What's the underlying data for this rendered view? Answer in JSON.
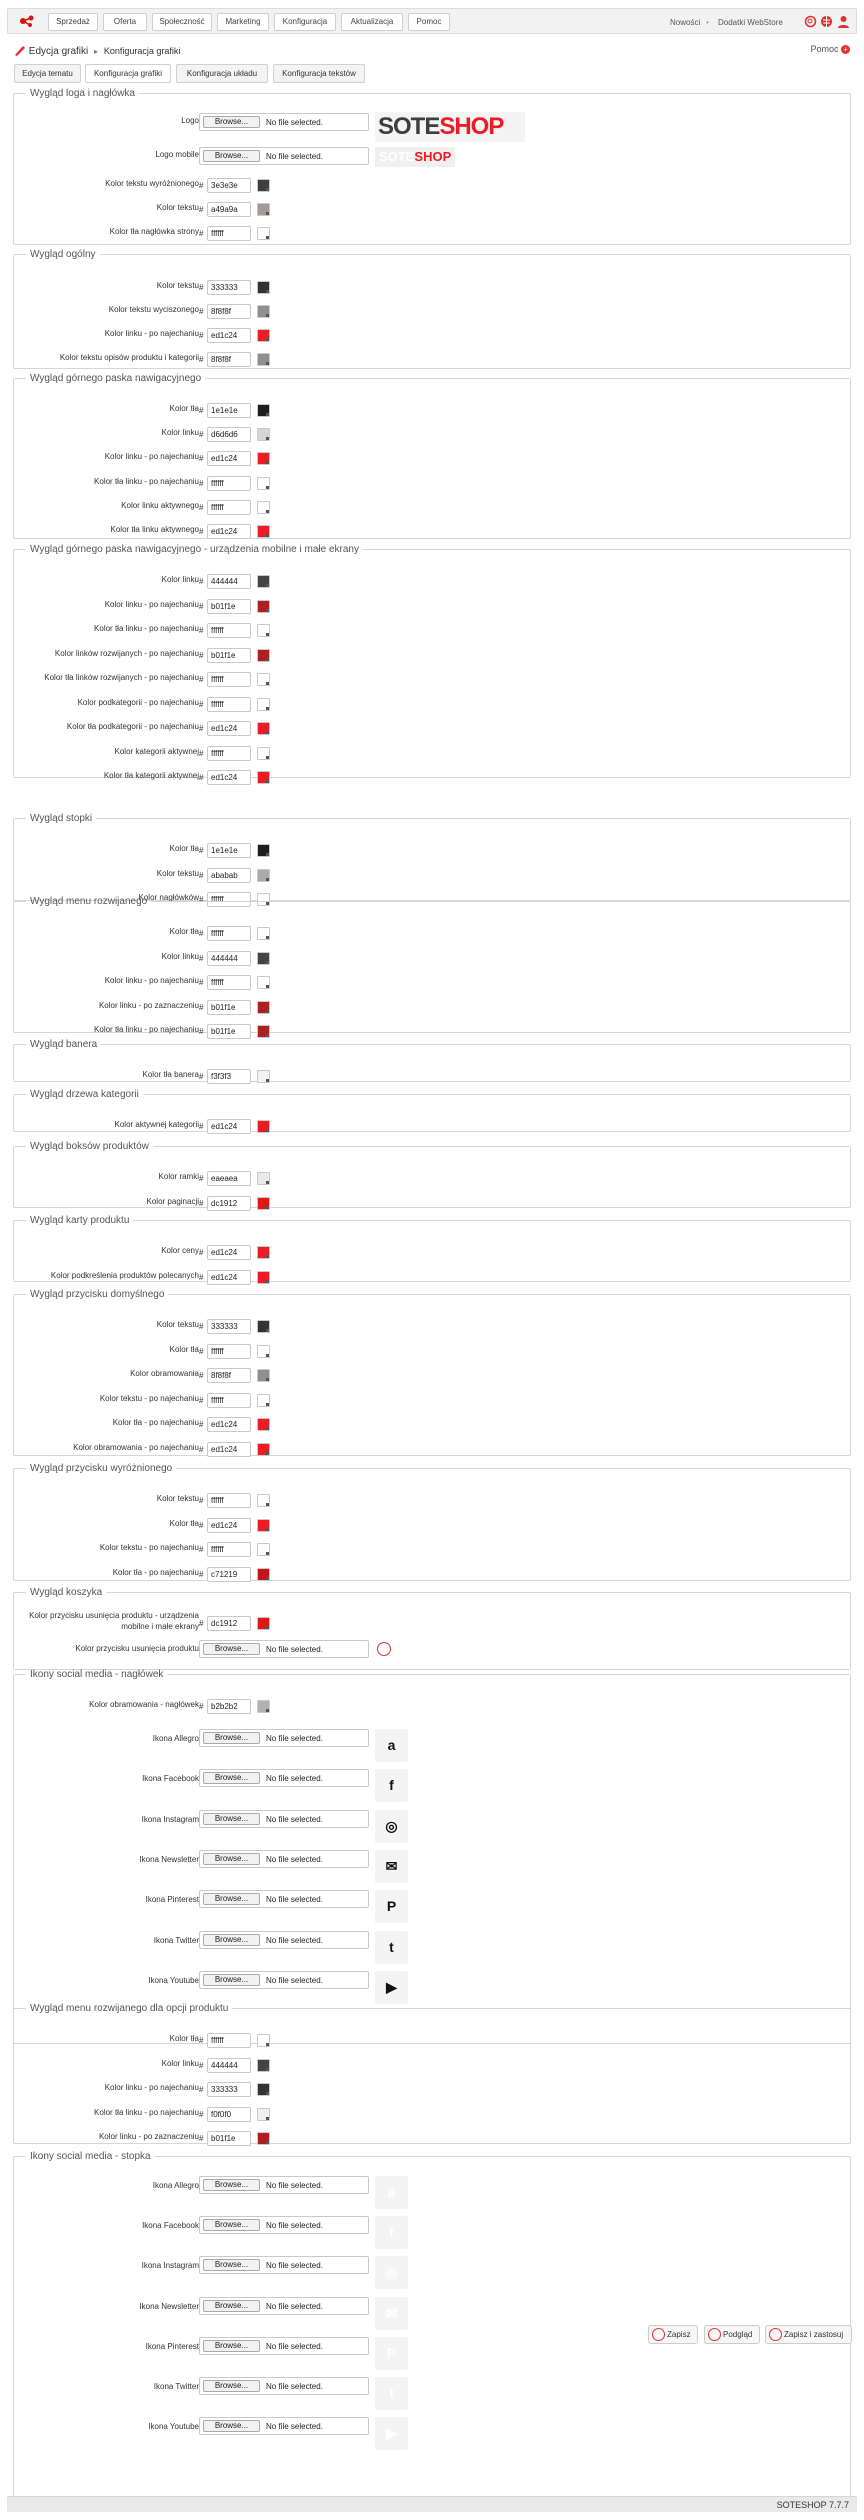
{
  "nav": {
    "items": [
      "Sprzedaż",
      "Oferta",
      "Społeczność",
      "Marketing",
      "Konfiguracja",
      "Aktualizacja",
      "Pomoc"
    ],
    "right_links": [
      "Nowości",
      "Dodatki WebStore"
    ]
  },
  "breadcrumb": {
    "root": "Edycja grafiki",
    "sep": "▸",
    "current": "Konfiguracja grafiki"
  },
  "help_label": "Pomoc",
  "tabs": [
    "Edycja tematu",
    "Konfiguracja grafiki",
    "Konfiguracja układu",
    "Konfiguracja tekstów"
  ],
  "file_placeholder": {
    "browse": "Browse...",
    "status": "No file selected."
  },
  "brand": {
    "part1": "SOTE",
    "part2": "SHOP",
    "accent": "#ed1c24"
  },
  "s1": {
    "legend": "Wygląd loga i nagłówka",
    "logo": "Logo",
    "logo_mobile": "Logo mobile",
    "rows": [
      {
        "label": "Kolor tekstu wyróżnionego",
        "value": "3e3e3e",
        "color": "#3e3e3e"
      },
      {
        "label": "Kolor tekstu",
        "value": "a49a9a",
        "color": "#a49a9a"
      },
      {
        "label": "Kolor tła nagłówka strony",
        "value": "ffffff",
        "color": "#ffffff"
      }
    ]
  },
  "s2": {
    "legend": "Wygląd ogólny",
    "rows": [
      {
        "label": "Kolor tekstu",
        "value": "333333",
        "color": "#333333"
      },
      {
        "label": "Kolor tekstu wyciszonego",
        "value": "8f8f8f",
        "color": "#8f8f8f"
      },
      {
        "label": "Kolor linku - po najechaniu",
        "value": "ed1c24",
        "color": "#ed1c24"
      },
      {
        "label": "Kolor tekstu opisów produktu i kategorii",
        "value": "8f8f8f",
        "color": "#8f8f8f"
      }
    ]
  },
  "s3": {
    "legend": "Wygląd górnego paska nawigacyjnego",
    "rows": [
      {
        "label": "Kolor tła",
        "value": "1e1e1e",
        "color": "#1e1e1e"
      },
      {
        "label": "Kolor linku",
        "value": "d6d6d6",
        "color": "#d6d6d6"
      },
      {
        "label": "Kolor linku - po najechaniu",
        "value": "ed1c24",
        "color": "#ed1c24"
      },
      {
        "label": "Kolor tła linku - po najechaniu",
        "value": "ffffff",
        "color": "#ffffff"
      },
      {
        "label": "Kolor linku aktywnego",
        "value": "ffffff",
        "color": "#ffffff"
      },
      {
        "label": "Kolor tła linku aktywnego",
        "value": "ed1c24",
        "color": "#ed1c24"
      }
    ]
  },
  "s4": {
    "legend": "Wygląd górnego paska nawigacyjnego - urządzenia mobilne i małe ekrany",
    "rows": [
      {
        "label": "Kolor linku",
        "value": "444444",
        "color": "#444444"
      },
      {
        "label": "Kolor linku - po najechaniu",
        "value": "b01f1e",
        "color": "#b01f1e"
      },
      {
        "label": "Kolor tła linku - po najechaniu",
        "value": "ffffff",
        "color": "#ffffff"
      },
      {
        "label": "Kolor linków rozwijanych - po najechaniu",
        "value": "b01f1e",
        "color": "#b01f1e"
      },
      {
        "label": "Kolor tła linków rozwijanych - po najechaniu",
        "value": "ffffff",
        "color": "#ffffff"
      },
      {
        "label": "Kolor podkategorii - po najechaniu",
        "value": "ffffff",
        "color": "#ffffff"
      },
      {
        "label": "Kolor tła podkategorii - po najechaniu",
        "value": "ed1c24",
        "color": "#ed1c24"
      },
      {
        "label": "Kolor kategorii aktywnej",
        "value": "ffffff",
        "color": "#ffffff"
      },
      {
        "label": "Kolor tła kategorii aktywnej",
        "value": "ed1c24",
        "color": "#ed1c24"
      }
    ]
  },
  "s5": {
    "legend": "Wygląd stopki",
    "rows": [
      {
        "label": "Kolor tła",
        "value": "1e1e1e",
        "color": "#1e1e1e"
      },
      {
        "label": "Kolor tekstu",
        "value": "ababab",
        "color": "#ababab"
      },
      {
        "label": "Kolor nagłówków",
        "value": "ffffff",
        "color": "#ffffff"
      }
    ]
  },
  "s6": {
    "legend": "Wygląd menu rozwijanego",
    "rows": [
      {
        "label": "Kolor tła",
        "value": "ffffff",
        "color": "#ffffff"
      },
      {
        "label": "Kolor linku",
        "value": "444444",
        "color": "#444444"
      },
      {
        "label": "Kolor linku - po najechaniu",
        "value": "ffffff",
        "color": "#ffffff"
      },
      {
        "label": "Kolor linku - po zaznaczeniu",
        "value": "b01f1e",
        "color": "#b01f1e"
      },
      {
        "label": "Kolor tła linku - po najechaniu",
        "value": "b01f1e",
        "color": "#b01f1e"
      }
    ]
  },
  "s7": {
    "legend": "Wygląd banera",
    "rows": [
      {
        "label": "Kolor tła banera",
        "value": "f3f3f3",
        "color": "#f3f3f3"
      }
    ]
  },
  "s8": {
    "legend": "Wygląd drzewa kategorii",
    "rows": [
      {
        "label": "Kolor aktywnej kategorii",
        "value": "ed1c24",
        "color": "#ed1c24"
      }
    ]
  },
  "s9": {
    "legend": "Wygląd boksów produktów",
    "rows": [
      {
        "label": "Kolor ramki",
        "value": "eaeaea",
        "color": "#eaeaea"
      },
      {
        "label": "Kolor paginacji",
        "value": "dc1912",
        "color": "#dc1912"
      }
    ]
  },
  "s10": {
    "legend": "Wygląd karty produktu",
    "rows": [
      {
        "label": "Kolor ceny",
        "value": "ed1c24",
        "color": "#ed1c24"
      },
      {
        "label": "Kolor podkreślenia produktów polecanych",
        "value": "ed1c24",
        "color": "#ed1c24"
      }
    ]
  },
  "s11": {
    "legend": "Wygląd przycisku domyślnego",
    "rows": [
      {
        "label": "Kolor tekstu",
        "value": "333333",
        "color": "#333333"
      },
      {
        "label": "Kolor tła",
        "value": "ffffff",
        "color": "#ffffff"
      },
      {
        "label": "Kolor obramowania",
        "value": "8f8f8f",
        "color": "#8f8f8f"
      },
      {
        "label": "Kolor tekstu - po najechaniu",
        "value": "ffffff",
        "color": "#ffffff"
      },
      {
        "label": "Kolor tła - po najechaniu",
        "value": "ed1c24",
        "color": "#ed1c24"
      },
      {
        "label": "Kolor obramowania - po najechaniu",
        "value": "ed1c24",
        "color": "#ed1c24"
      }
    ]
  },
  "s12": {
    "legend": "Wygląd przycisku wyróżnionego",
    "rows": [
      {
        "label": "Kolor tekstu",
        "value": "ffffff",
        "color": "#ffffff"
      },
      {
        "label": "Kolor tła",
        "value": "ed1c24",
        "color": "#ed1c24"
      },
      {
        "label": "Kolor tekstu - po najechaniu",
        "value": "ffffff",
        "color": "#ffffff"
      },
      {
        "label": "Kolor tła - po najechaniu",
        "value": "c71219",
        "color": "#c71219"
      }
    ]
  },
  "s13": {
    "legend": "Wygląd koszyka",
    "rows": [
      {
        "label": "Kolor przycisku usunięcia produktu - urządzenia mobilne i małe ekrany",
        "value": "dc1912",
        "color": "#dc1912"
      }
    ],
    "file_label": "Kolor przycisku usunięcia produktu"
  },
  "s14": {
    "legend": "Ikony social media - nagłówek",
    "rows": [
      {
        "label": "Kolor obramowania - nagłówek",
        "value": "b2b2b2",
        "color": "#b2b2b2"
      }
    ],
    "files": [
      {
        "label": "Ikona Allegro",
        "icon": "a",
        "name": "allegro-icon"
      },
      {
        "label": "Ikona Facebook",
        "icon": "f",
        "name": "facebook-icon"
      },
      {
        "label": "Ikona Instagram",
        "icon": "◎",
        "name": "instagram-icon"
      },
      {
        "label": "Ikona Newsletter",
        "icon": "✉",
        "name": "newsletter-icon"
      },
      {
        "label": "Ikona Pinterest",
        "icon": "P",
        "name": "pinterest-icon"
      },
      {
        "label": "Ikona Twitter",
        "icon": "t",
        "name": "twitter-icon"
      },
      {
        "label": "Ikona Youtube",
        "icon": "▶",
        "name": "youtube-icon"
      }
    ]
  },
  "s15": {
    "legend": "Wygląd menu rozwijanego dla opcji produktu",
    "rows": [
      {
        "label": "Kolor tła",
        "value": "ffffff",
        "color": "#ffffff"
      },
      {
        "label": "Kolor linku",
        "value": "444444",
        "color": "#444444"
      },
      {
        "label": "Kolor linku - po najechaniu",
        "value": "333333",
        "color": "#333333"
      },
      {
        "label": "Kolor tła linku - po najechaniu",
        "value": "f0f0f0",
        "color": "#f0f0f0"
      },
      {
        "label": "Kolor linku - po zaznaczeniu",
        "value": "b01f1e",
        "color": "#b01f1e"
      }
    ]
  },
  "s16": {
    "legend": "Ikony social media - stopka",
    "files": [
      {
        "label": "Ikona Allegro",
        "icon": "a",
        "name": "allegro-icon"
      },
      {
        "label": "Ikona Facebook",
        "icon": "f",
        "name": "facebook-icon"
      },
      {
        "label": "Ikona Instagram",
        "icon": "◎",
        "name": "instagram-icon"
      },
      {
        "label": "Ikona Newsletter",
        "icon": "✉",
        "name": "newsletter-icon"
      },
      {
        "label": "Ikona Pinterest",
        "icon": "P",
        "name": "pinterest-icon"
      },
      {
        "label": "Ikona Twitter",
        "icon": "t",
        "name": "twitter-icon"
      },
      {
        "label": "Ikona Youtube",
        "icon": "▶",
        "name": "youtube-icon"
      }
    ]
  },
  "actions": {
    "save": "Zapisz",
    "preview": "Podgląd",
    "save_apply": "Zapisz i zastosuj"
  },
  "footer": "SOTESHOP 7.7.7"
}
